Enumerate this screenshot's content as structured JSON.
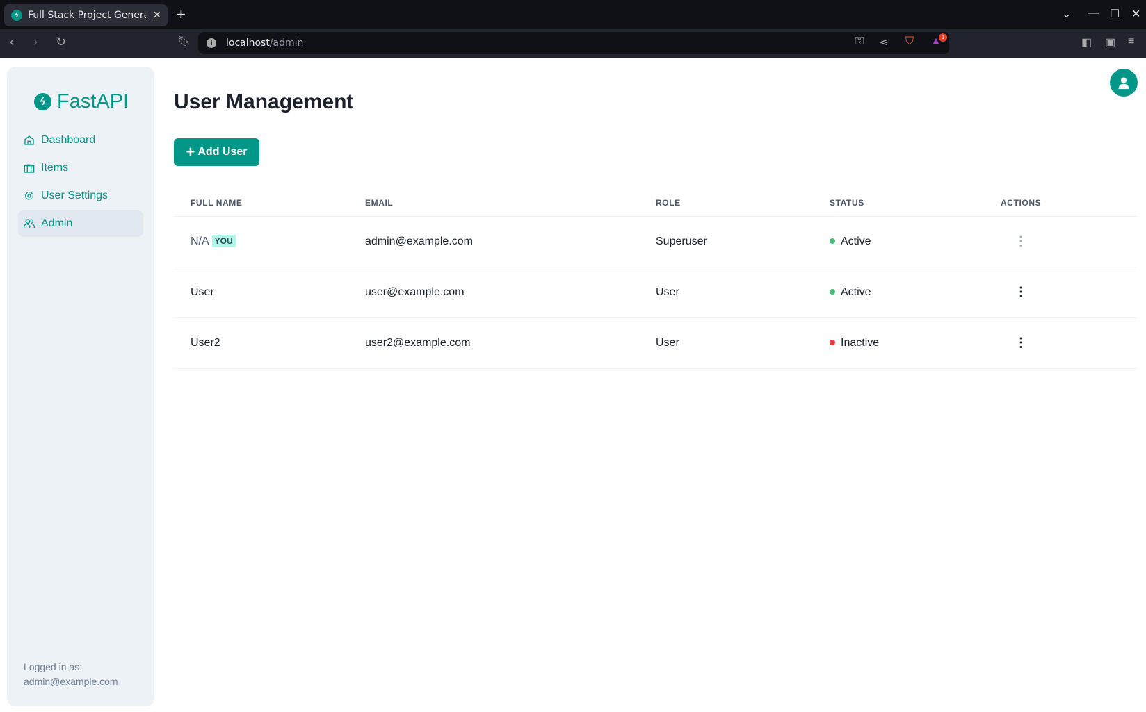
{
  "browser": {
    "tab_title": "Full Stack Project Generator",
    "url_host": "localhost",
    "url_path": "/admin",
    "badge_count": "1"
  },
  "sidebar": {
    "logo": "FastAPI",
    "items": [
      {
        "label": "Dashboard"
      },
      {
        "label": "Items"
      },
      {
        "label": "User Settings"
      },
      {
        "label": "Admin"
      }
    ],
    "logged_in_label": "Logged in as:",
    "logged_in_email": "admin@example.com"
  },
  "main": {
    "title": "User Management",
    "add_button": "Add User",
    "columns": [
      "FULL NAME",
      "EMAIL",
      "ROLE",
      "STATUS",
      "ACTIONS"
    ],
    "you_badge": "YOU",
    "rows": [
      {
        "full_name": "N/A",
        "email": "admin@example.com",
        "role": "Superuser",
        "status": "Active"
      },
      {
        "full_name": "User",
        "email": "user@example.com",
        "role": "User",
        "status": "Active"
      },
      {
        "full_name": "User2",
        "email": "user2@example.com",
        "role": "User",
        "status": "Inactive"
      }
    ]
  },
  "colors": {
    "accent": "#009688",
    "active": "#48bb78",
    "inactive": "#e53e3e"
  }
}
